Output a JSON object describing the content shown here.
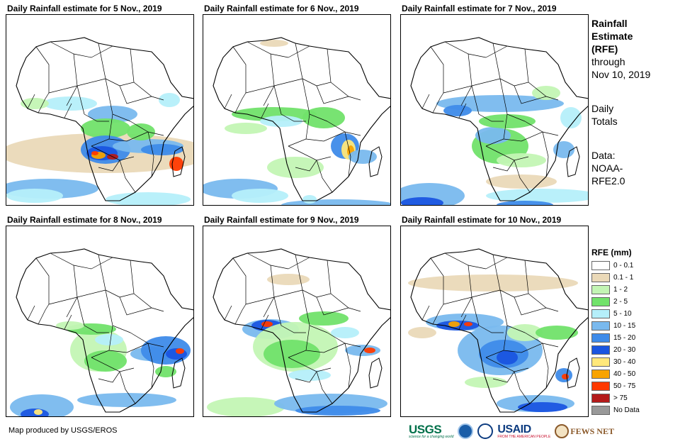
{
  "panels": [
    {
      "title": "Daily Rainfall estimate for 5 Nov., 2019",
      "day": 5
    },
    {
      "title": "Daily Rainfall estimate for 6 Nov., 2019",
      "day": 6
    },
    {
      "title": "Daily Rainfall estimate for 7 Nov., 2019",
      "day": 7
    },
    {
      "title": "Daily Rainfall estimate for 8 Nov., 2019",
      "day": 8
    },
    {
      "title": "Daily Rainfall estimate for 9 Nov., 2019",
      "day": 9
    },
    {
      "title": "Daily Rainfall estimate for 10 Nov., 2019",
      "day": 10
    }
  ],
  "info": {
    "line1": "Rainfall",
    "line2": "Estimate",
    "line3": "(RFE)",
    "line4": "through",
    "line5": "Nov 10, 2019",
    "line6": "Daily",
    "line7": "Totals",
    "line8": "Data:",
    "line9": "NOAA-",
    "line10": "RFE2.0"
  },
  "legend": {
    "title": "RFE (mm)",
    "items": [
      {
        "label": "0 - 0.1",
        "color": "#ffffff"
      },
      {
        "label": "0.1 - 1",
        "color": "#ead9b8"
      },
      {
        "label": "1 - 2",
        "color": "#c3f5b4"
      },
      {
        "label": "2 - 5",
        "color": "#71e26a"
      },
      {
        "label": "5 - 10",
        "color": "#b5effa"
      },
      {
        "label": "10 - 15",
        "color": "#79b9ee"
      },
      {
        "label": "15 - 20",
        "color": "#3e8be9"
      },
      {
        "label": "20 - 30",
        "color": "#1a55e0"
      },
      {
        "label": "30 - 40",
        "color": "#ffe87a"
      },
      {
        "label": "40 - 50",
        "color": "#f8a300"
      },
      {
        "label": "50 - 75",
        "color": "#ff3a00"
      },
      {
        "label": "> 75",
        "color": "#b41a1a"
      },
      {
        "label": "No Data",
        "color": "#999999"
      }
    ]
  },
  "credit": "Map produced by USGS/EROS",
  "logos": {
    "usgs": "USGS",
    "usgs_sub": "science for a changing world",
    "usaid": "USAID",
    "usaid_sub": "FROM THE AMERICAN PEOPLE",
    "fews": "FEWS NET"
  }
}
